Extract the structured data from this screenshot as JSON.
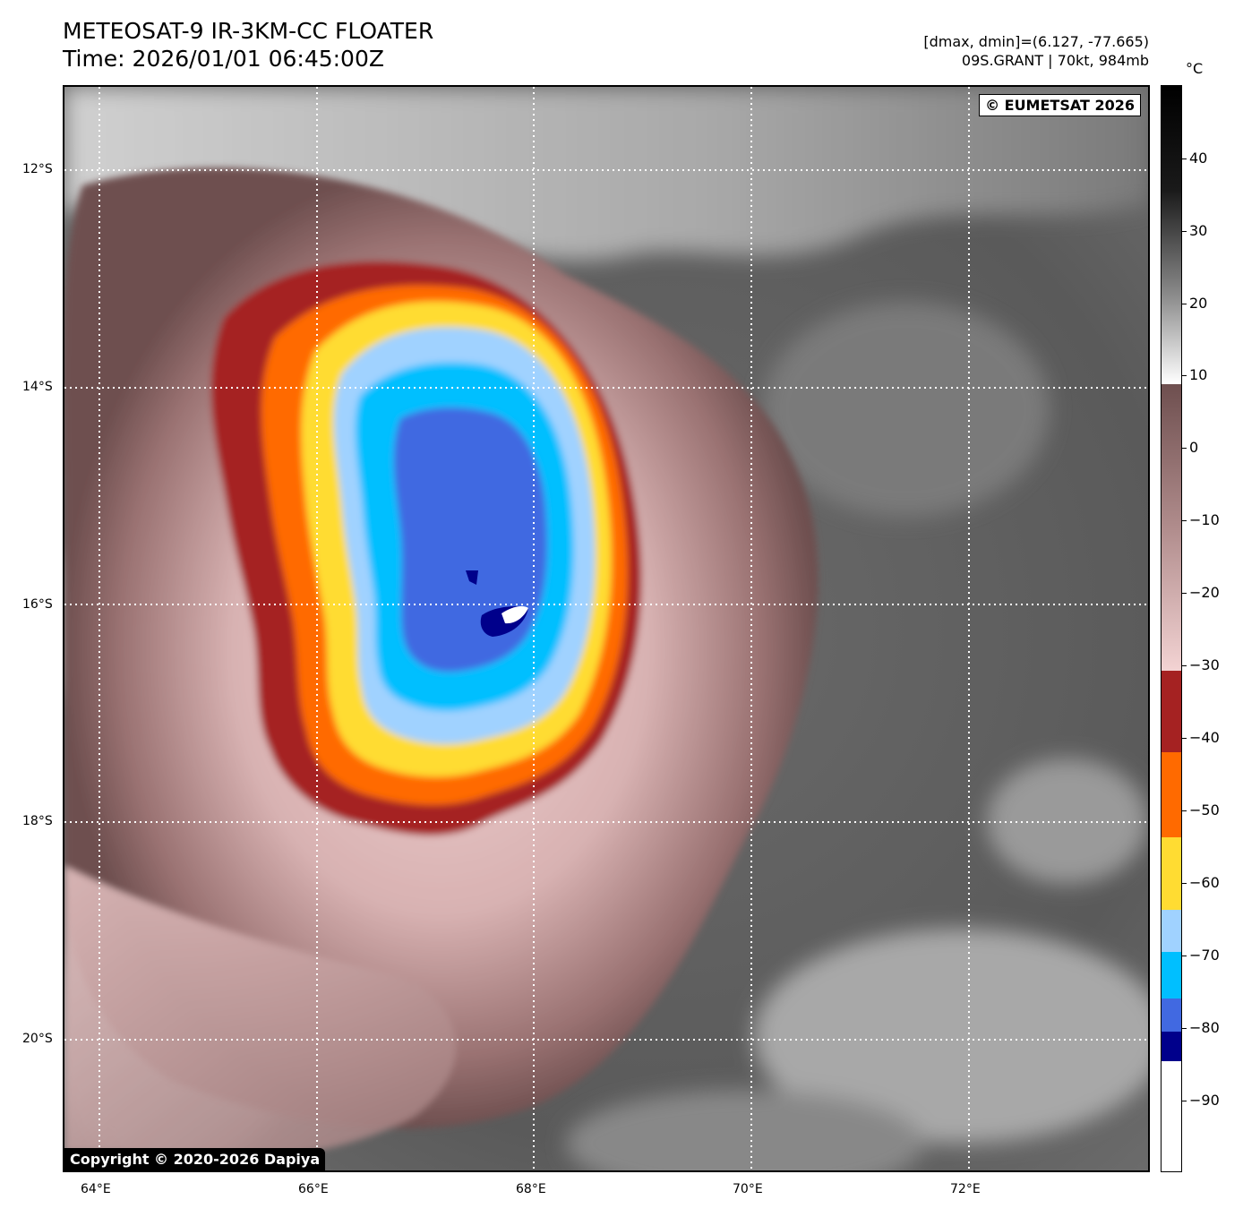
{
  "header": {
    "title_line1": "METEOSAT-9 IR-3KM-CC FLOATER",
    "title_line2": "Time: 2026/01/01 06:45:00Z",
    "info_line1": "[dmax, dmin]=(6.127, -77.665)",
    "info_line2": "09S.GRANT | 70kt, 984mb"
  },
  "map": {
    "eumetsat_label": "© EUMETSAT 2026",
    "copyright_label": "Copyright © 2020-2026 Dapiya",
    "lat_labels": [
      "12°S",
      "14°S",
      "16°S",
      "18°S",
      "20°S"
    ],
    "lon_labels": [
      "64°E",
      "66°E",
      "68°E",
      "70°E",
      "72°E"
    ],
    "storm": {
      "name": "09S.GRANT",
      "intensity_kt": 70,
      "pressure_mb": 984,
      "dmax": 6.127,
      "dmin": -77.665
    }
  },
  "colorbar": {
    "unit": "°C",
    "tick_labels": [
      "40",
      "30",
      "20",
      "10",
      "0",
      "−10",
      "−20",
      "−30",
      "−40",
      "−50",
      "−60",
      "−70",
      "−80",
      "−90"
    ],
    "colors": {
      "warm_black": "#000000",
      "warm_white": "#ffffff",
      "brown_dark": "#6e4f4f",
      "pink_light": "#f3d3d3",
      "dark_red": "#a52222",
      "orange": "#ff6a00",
      "yellow": "#ffdc32",
      "light_blue": "#a0d2ff",
      "cyan": "#00bfff",
      "royal_blue": "#4169e1",
      "navy": "#00008b",
      "cold_white": "#ffffff"
    }
  }
}
